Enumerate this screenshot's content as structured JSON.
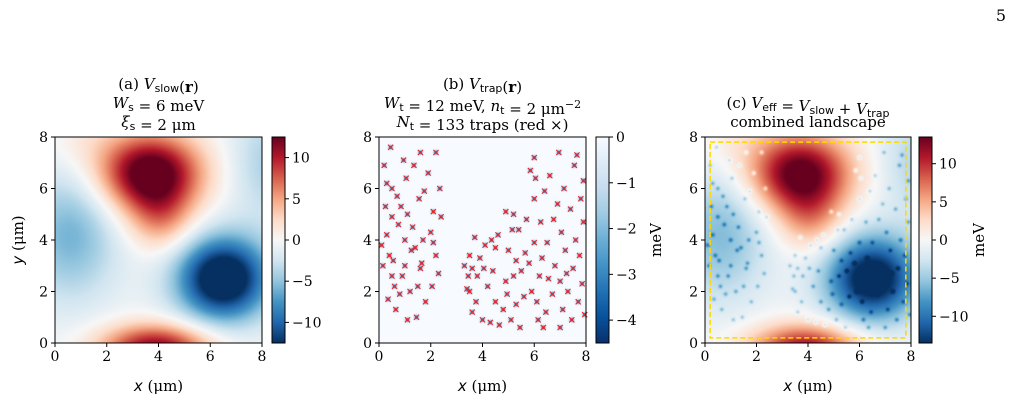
{
  "page_number": "5",
  "panels": [
    {
      "id": "a",
      "title": [
        [
          "(a) ",
          "V",
          "slow",
          "(r)"
        ],
        [
          "W",
          "s",
          " = 6 meV"
        ],
        [
          "ξ",
          "s",
          " = 2 μm"
        ]
      ],
      "xlabel_var": "x",
      "xlabel_unit": " (μm)",
      "ylabel_var": "y",
      "ylabel_unit": " (μm)",
      "colorbar_label": "",
      "colorbar_ticks": [
        "10",
        "5",
        "0",
        "−5",
        "−10"
      ]
    },
    {
      "id": "b",
      "title": [
        [
          "(b) ",
          "V",
          "trap",
          "(r)"
        ],
        [
          "W",
          "t",
          " = 12 meV, ",
          "n",
          "t",
          " = 2 μm",
          "−2"
        ],
        [
          "N",
          "t",
          " = 133 traps (red ×)"
        ]
      ],
      "xlabel_var": "x",
      "xlabel_unit": " (μm)",
      "ylabel_var": "",
      "ylabel_unit": "",
      "colorbar_label": "meV",
      "colorbar_ticks": [
        "0",
        "−1",
        "−2",
        "−3",
        "−4"
      ]
    },
    {
      "id": "c",
      "title": [
        [
          "(c) ",
          "V",
          "eff",
          " = ",
          "V",
          "slow",
          " + ",
          "V",
          "trap"
        ],
        [
          "combined landscape"
        ]
      ],
      "xlabel_var": "x",
      "xlabel_unit": " (μm)",
      "ylabel_var": "",
      "ylabel_unit": "",
      "colorbar_label": "meV",
      "colorbar_ticks": [
        "10",
        "5",
        "0",
        "−5",
        "−10"
      ]
    }
  ],
  "chart_data": [
    {
      "type": "heatmap",
      "panel": "a",
      "description_field": "V_slow(r), smooth random landscape",
      "xlim": [
        0,
        8
      ],
      "ylim": [
        0,
        8
      ],
      "x_ticks": [
        0,
        2,
        4,
        6,
        8
      ],
      "y_ticks": [
        0,
        2,
        4,
        6,
        8
      ],
      "colormap": "RdBu_r",
      "clim": [
        -12.5,
        12.5
      ],
      "colorbar_ticks": [
        10,
        5,
        0,
        -5,
        -10
      ],
      "features": [
        {
          "x": 3.7,
          "y": 6.6,
          "value": 12.5
        },
        {
          "x": 4.1,
          "y": 4.8,
          "value": 5
        },
        {
          "x": 3.9,
          "y": 0.2,
          "value": 8
        },
        {
          "x": 6.5,
          "y": 2.5,
          "value": -12
        },
        {
          "x": 0.7,
          "y": 4.2,
          "value": -4
        },
        {
          "x": 7.9,
          "y": 6.8,
          "value": -2
        }
      ]
    },
    {
      "type": "heatmap",
      "panel": "b",
      "description_field": "V_trap(r), trap potential with markers",
      "xlim": [
        0,
        8
      ],
      "ylim": [
        0,
        8
      ],
      "x_ticks": [
        0,
        2,
        4,
        6,
        8
      ],
      "y_ticks": [
        0,
        2,
        4,
        6,
        8
      ],
      "colormap": "Blues_r",
      "clim": [
        -4.5,
        0
      ],
      "colorbar_ticks": [
        0,
        -1,
        -2,
        -3,
        -4
      ],
      "marker_color": "#e8262a",
      "trap_count": 133,
      "traps": [
        [
          0.1,
          3.8
        ],
        [
          0.15,
          3.0
        ],
        [
          0.2,
          6.9
        ],
        [
          0.3,
          6.2
        ],
        [
          0.3,
          4.2
        ],
        [
          0.35,
          1.7
        ],
        [
          0.45,
          7.6
        ],
        [
          0.5,
          6.0
        ],
        [
          0.5,
          4.9
        ],
        [
          0.55,
          3.2
        ],
        [
          0.6,
          2.2
        ],
        [
          0.7,
          5.7
        ],
        [
          0.75,
          4.6
        ],
        [
          0.8,
          1.9
        ],
        [
          0.9,
          2.6
        ],
        [
          0.95,
          7.1
        ],
        [
          1.0,
          3.0
        ],
        [
          1.05,
          6.4
        ],
        [
          1.1,
          5.0
        ],
        [
          1.1,
          0.9
        ],
        [
          1.2,
          2.0
        ],
        [
          1.3,
          4.5
        ],
        [
          1.35,
          6.9
        ],
        [
          1.4,
          3.7
        ],
        [
          1.5,
          2.2
        ],
        [
          1.55,
          5.6
        ],
        [
          1.6,
          7.4
        ],
        [
          1.65,
          3.1
        ],
        [
          1.7,
          4.0
        ],
        [
          1.8,
          1.6
        ],
        [
          1.9,
          6.6
        ],
        [
          2.0,
          4.3
        ],
        [
          2.1,
          5.1
        ],
        [
          2.2,
          7.4
        ],
        [
          2.2,
          3.4
        ],
        [
          2.3,
          2.7
        ],
        [
          2.4,
          4.9
        ],
        [
          3.3,
          3.0
        ],
        [
          3.4,
          2.1
        ],
        [
          3.5,
          2.0
        ],
        [
          3.5,
          3.4
        ],
        [
          3.6,
          1.2
        ],
        [
          3.7,
          4.1
        ],
        [
          3.8,
          2.6
        ],
        [
          3.9,
          3.3
        ],
        [
          4.0,
          0.9
        ],
        [
          4.1,
          3.8
        ],
        [
          4.2,
          2.2
        ],
        [
          4.3,
          0.8
        ],
        [
          4.4,
          2.8
        ],
        [
          4.5,
          3.7
        ],
        [
          4.6,
          4.2
        ],
        [
          4.8,
          1.3
        ],
        [
          4.9,
          2.4
        ],
        [
          4.9,
          5.1
        ],
        [
          5.0,
          3.6
        ],
        [
          5.1,
          0.9
        ],
        [
          5.2,
          5.0
        ],
        [
          5.3,
          3.2
        ],
        [
          5.3,
          1.5
        ],
        [
          5.4,
          4.4
        ],
        [
          5.5,
          2.8
        ],
        [
          5.6,
          1.8
        ],
        [
          5.7,
          4.8
        ],
        [
          5.8,
          3.1
        ],
        [
          5.9,
          2.0
        ],
        [
          6.0,
          3.9
        ],
        [
          6.0,
          7.2
        ],
        [
          6.05,
          6.4
        ],
        [
          6.1,
          1.6
        ],
        [
          6.15,
          0.9
        ],
        [
          6.2,
          2.6
        ],
        [
          6.25,
          4.7
        ],
        [
          6.3,
          3.3
        ],
        [
          6.4,
          5.9
        ],
        [
          6.45,
          1.2
        ],
        [
          6.5,
          3.9
        ],
        [
          6.55,
          2.5
        ],
        [
          6.6,
          6.5
        ],
        [
          6.7,
          1.9
        ],
        [
          6.8,
          3.0
        ],
        [
          6.9,
          5.4
        ],
        [
          6.95,
          7.4
        ],
        [
          7.0,
          2.4
        ],
        [
          7.05,
          4.3
        ],
        [
          7.1,
          1.3
        ],
        [
          7.15,
          6.0
        ],
        [
          7.2,
          3.6
        ],
        [
          7.3,
          2.0
        ],
        [
          7.4,
          5.2
        ],
        [
          7.45,
          0.9
        ],
        [
          7.5,
          2.9
        ],
        [
          7.55,
          6.9
        ],
        [
          7.6,
          4.0
        ],
        [
          7.7,
          1.6
        ],
        [
          7.75,
          3.4
        ],
        [
          7.8,
          5.6
        ],
        [
          7.85,
          2.3
        ],
        [
          7.9,
          6.3
        ],
        [
          7.95,
          1.1
        ],
        [
          0.25,
          5.3
        ],
        [
          0.4,
          3.4
        ],
        [
          0.65,
          1.3
        ],
        [
          0.85,
          5.3
        ],
        [
          1.25,
          3.6
        ],
        [
          1.45,
          1.0
        ],
        [
          1.75,
          5.9
        ],
        [
          2.05,
          2.2
        ],
        [
          2.35,
          6.0
        ],
        [
          3.45,
          2.6
        ],
        [
          3.75,
          1.6
        ],
        [
          4.05,
          2.9
        ],
        [
          4.35,
          4.0
        ],
        [
          4.65,
          0.7
        ],
        [
          4.95,
          1.9
        ],
        [
          5.15,
          4.4
        ],
        [
          5.45,
          0.6
        ],
        [
          5.65,
          3.5
        ],
        [
          5.85,
          6.7
        ],
        [
          6.35,
          0.6
        ],
        [
          6.75,
          4.8
        ],
        [
          7.25,
          2.7
        ],
        [
          7.65,
          7.3
        ],
        [
          7.9,
          4.7
        ],
        [
          0.5,
          2.6
        ],
        [
          1.0,
          4.0
        ],
        [
          1.6,
          2.9
        ],
        [
          2.1,
          3.9
        ],
        [
          3.6,
          2.9
        ],
        [
          4.5,
          1.6
        ],
        [
          5.2,
          2.6
        ],
        [
          6.0,
          5.6
        ],
        [
          7.0,
          0.6
        ]
      ]
    },
    {
      "type": "heatmap",
      "panel": "c",
      "description_field": "V_eff = V_slow + V_trap",
      "xlim": [
        0,
        8
      ],
      "ylim": [
        0,
        8
      ],
      "x_ticks": [
        0,
        2,
        4,
        6,
        8
      ],
      "y_ticks": [
        0,
        2,
        4,
        6,
        8
      ],
      "colormap": "RdBu_r",
      "clim": [
        -13.5,
        13.5
      ],
      "colorbar_ticks": [
        10,
        5,
        0,
        -5,
        -10
      ],
      "box_color": "#ffd700",
      "box": {
        "x0": 0.2,
        "x1": 7.8,
        "y0": 0.2,
        "y1": 7.8
      }
    }
  ]
}
